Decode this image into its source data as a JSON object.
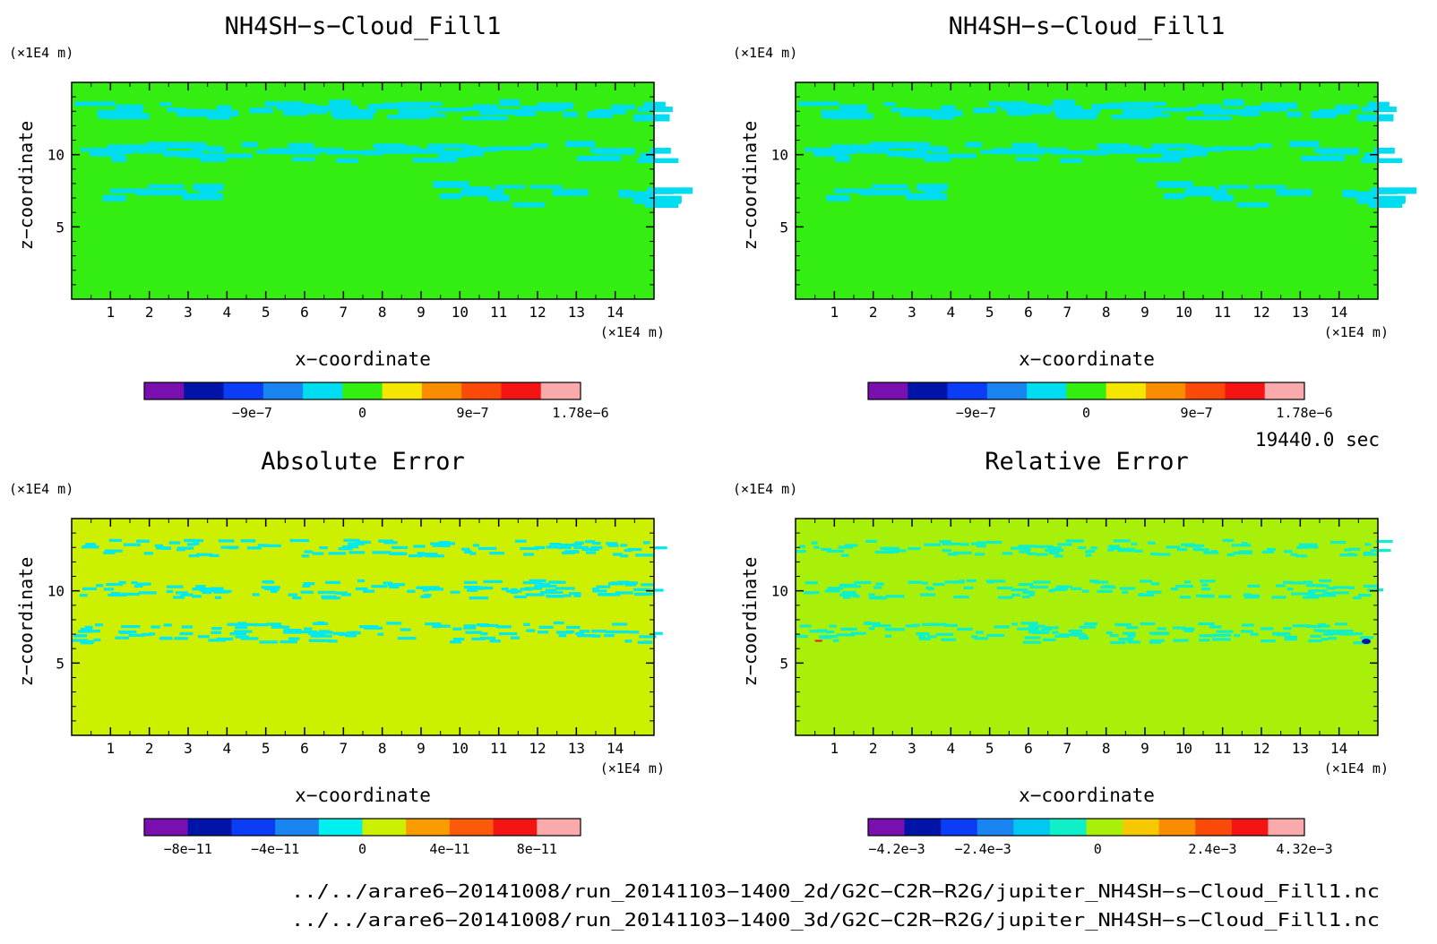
{
  "page": {
    "time": "19440.0 sec"
  },
  "panels": [
    {
      "id": "top-left",
      "title": "NH4SH−s−Cloud_Fill1",
      "y_unit": "(×1E4 m)",
      "x_unit": "(×1E4 m)",
      "x_label": "x−coordinate",
      "y_label": "z−coordinate",
      "colorbar_ticks": [
        "−9e−7",
        "0",
        "9e−7",
        "1.78e−6"
      ]
    },
    {
      "id": "top-right",
      "title": "NH4SH−s−Cloud_Fill1",
      "y_unit": "(×1E4 m)",
      "x_unit": "(×1E4 m)",
      "x_label": "x−coordinate",
      "y_label": "z−coordinate",
      "colorbar_ticks": [
        "−9e−7",
        "0",
        "9e−7",
        "1.78e−6"
      ]
    },
    {
      "id": "bottom-left",
      "title": "Absolute Error",
      "y_unit": "(×1E4 m)",
      "x_unit": "(×1E4 m)",
      "x_label": "x−coordinate",
      "y_label": "z−coordinate",
      "colorbar_ticks": [
        "−8e−11",
        "−4e−11",
        "0",
        "4e−11",
        "8e−11"
      ]
    },
    {
      "id": "bottom-right",
      "title": "Relative Error",
      "y_unit": "(×1E4 m)",
      "x_unit": "(×1E4 m)",
      "x_label": "x−coordinate",
      "y_label": "z−coordinate",
      "colorbar_ticks": [
        "−4.2e−3",
        "−2.4e−3",
        "0",
        "2.4e−3",
        "4.32e−3"
      ]
    }
  ],
  "footer": {
    "line1": "../../arare6−20141008/run_20141103−1400_2d/G2C−C2R−R2G/jupiter_NH4SH−s−Cloud_Fill1.nc",
    "line2": "../../arare6−20141008/run_20141103−1400_3d/G2C−C2R−R2G/jupiter_NH4SH−s−Cloud_Fill1.nc"
  },
  "chart_data": [
    {
      "type": "heatmap",
      "title": "NH4SH−s−Cloud_Fill1",
      "xlabel": "x−coordinate",
      "ylabel": "z−coordinate",
      "x_unit": "(×1E4 m)",
      "y_unit": "(×1E4 m)",
      "xlim": [
        0,
        15
      ],
      "ylim": [
        0,
        15
      ],
      "x_ticks": [
        1,
        2,
        3,
        4,
        5,
        6,
        7,
        8,
        9,
        10,
        11,
        12,
        13,
        14
      ],
      "y_ticks": [
        5,
        10
      ],
      "background_color": "#33ee10",
      "feature_color": "#00dcf0",
      "colorbar": {
        "colors": [
          "#7a0fb0",
          "#0014a8",
          "#0a3df5",
          "#1885f0",
          "#00dcf0",
          "#33ee10",
          "#f5e600",
          "#fa8c00",
          "#fa4a0a",
          "#f51414",
          "#faaaaa"
        ],
        "tick_labels": [
          "−9e−7",
          "0",
          "9e−7",
          "1.78e−6"
        ],
        "tick_values": [
          -9e-07,
          0,
          9e-07,
          1.78e-06
        ],
        "range": [
          -1.78e-06,
          1.78e-06
        ]
      }
    },
    {
      "type": "heatmap",
      "title": "NH4SH−s−Cloud_Fill1",
      "xlabel": "x−coordinate",
      "ylabel": "z−coordinate",
      "x_unit": "(×1E4 m)",
      "y_unit": "(×1E4 m)",
      "xlim": [
        0,
        15
      ],
      "ylim": [
        0,
        15
      ],
      "x_ticks": [
        1,
        2,
        3,
        4,
        5,
        6,
        7,
        8,
        9,
        10,
        11,
        12,
        13,
        14
      ],
      "y_ticks": [
        5,
        10
      ],
      "background_color": "#33ee10",
      "feature_color": "#00dcf0",
      "colorbar": {
        "colors": [
          "#7a0fb0",
          "#0014a8",
          "#0a3df5",
          "#1885f0",
          "#00dcf0",
          "#33ee10",
          "#f5e600",
          "#fa8c00",
          "#fa4a0a",
          "#f51414",
          "#faaaaa"
        ],
        "tick_labels": [
          "−9e−7",
          "0",
          "9e−7",
          "1.78e−6"
        ],
        "tick_values": [
          -9e-07,
          0,
          9e-07,
          1.78e-06
        ],
        "range": [
          -1.78e-06,
          1.78e-06
        ]
      }
    },
    {
      "type": "heatmap",
      "title": "Absolute Error",
      "xlabel": "x−coordinate",
      "ylabel": "z−coordinate",
      "x_unit": "(×1E4 m)",
      "y_unit": "(×1E4 m)",
      "xlim": [
        0,
        15
      ],
      "ylim": [
        0,
        15
      ],
      "x_ticks": [
        1,
        2,
        3,
        4,
        5,
        6,
        7,
        8,
        9,
        10,
        11,
        12,
        13,
        14
      ],
      "y_ticks": [
        5,
        10
      ],
      "background_color": "#ccf000",
      "feature_color": "#00e8f0",
      "colorbar": {
        "colors": [
          "#7a0fb0",
          "#0014a8",
          "#0a3df5",
          "#1885f0",
          "#00f0f0",
          "#ccf000",
          "#fa9c00",
          "#fa5a0a",
          "#f51414",
          "#faaaaa"
        ],
        "tick_labels": [
          "−8e−11",
          "−4e−11",
          "0",
          "4e−11",
          "8e−11"
        ],
        "tick_values": [
          -8e-11,
          -4e-11,
          0,
          4e-11,
          8e-11
        ],
        "range": [
          -1e-10,
          1e-10
        ]
      }
    },
    {
      "type": "heatmap",
      "title": "Relative Error",
      "xlabel": "x−coordinate",
      "ylabel": "z−coordinate",
      "x_unit": "(×1E4 m)",
      "y_unit": "(×1E4 m)",
      "xlim": [
        0,
        15
      ],
      "ylim": [
        0,
        15
      ],
      "x_ticks": [
        1,
        2,
        3,
        4,
        5,
        6,
        7,
        8,
        9,
        10,
        11,
        12,
        13,
        14
      ],
      "y_ticks": [
        5,
        10
      ],
      "background_color": "#a8f00a",
      "feature_color": "#10f0c8",
      "colorbar": {
        "colors": [
          "#7a0fb0",
          "#0014a8",
          "#0a3df5",
          "#1885f0",
          "#00c8f0",
          "#10f0c8",
          "#a8f00a",
          "#f5c800",
          "#fa8c00",
          "#fa4a0a",
          "#f51414",
          "#faaaaa"
        ],
        "tick_labels": [
          "−4.2e−3",
          "−2.4e−3",
          "0",
          "2.4e−3",
          "4.32e−3"
        ],
        "tick_values": [
          -0.0042,
          -0.0024,
          0,
          0.0024,
          0.00432
        ],
        "range": [
          -0.0048,
          0.00432
        ]
      }
    }
  ]
}
